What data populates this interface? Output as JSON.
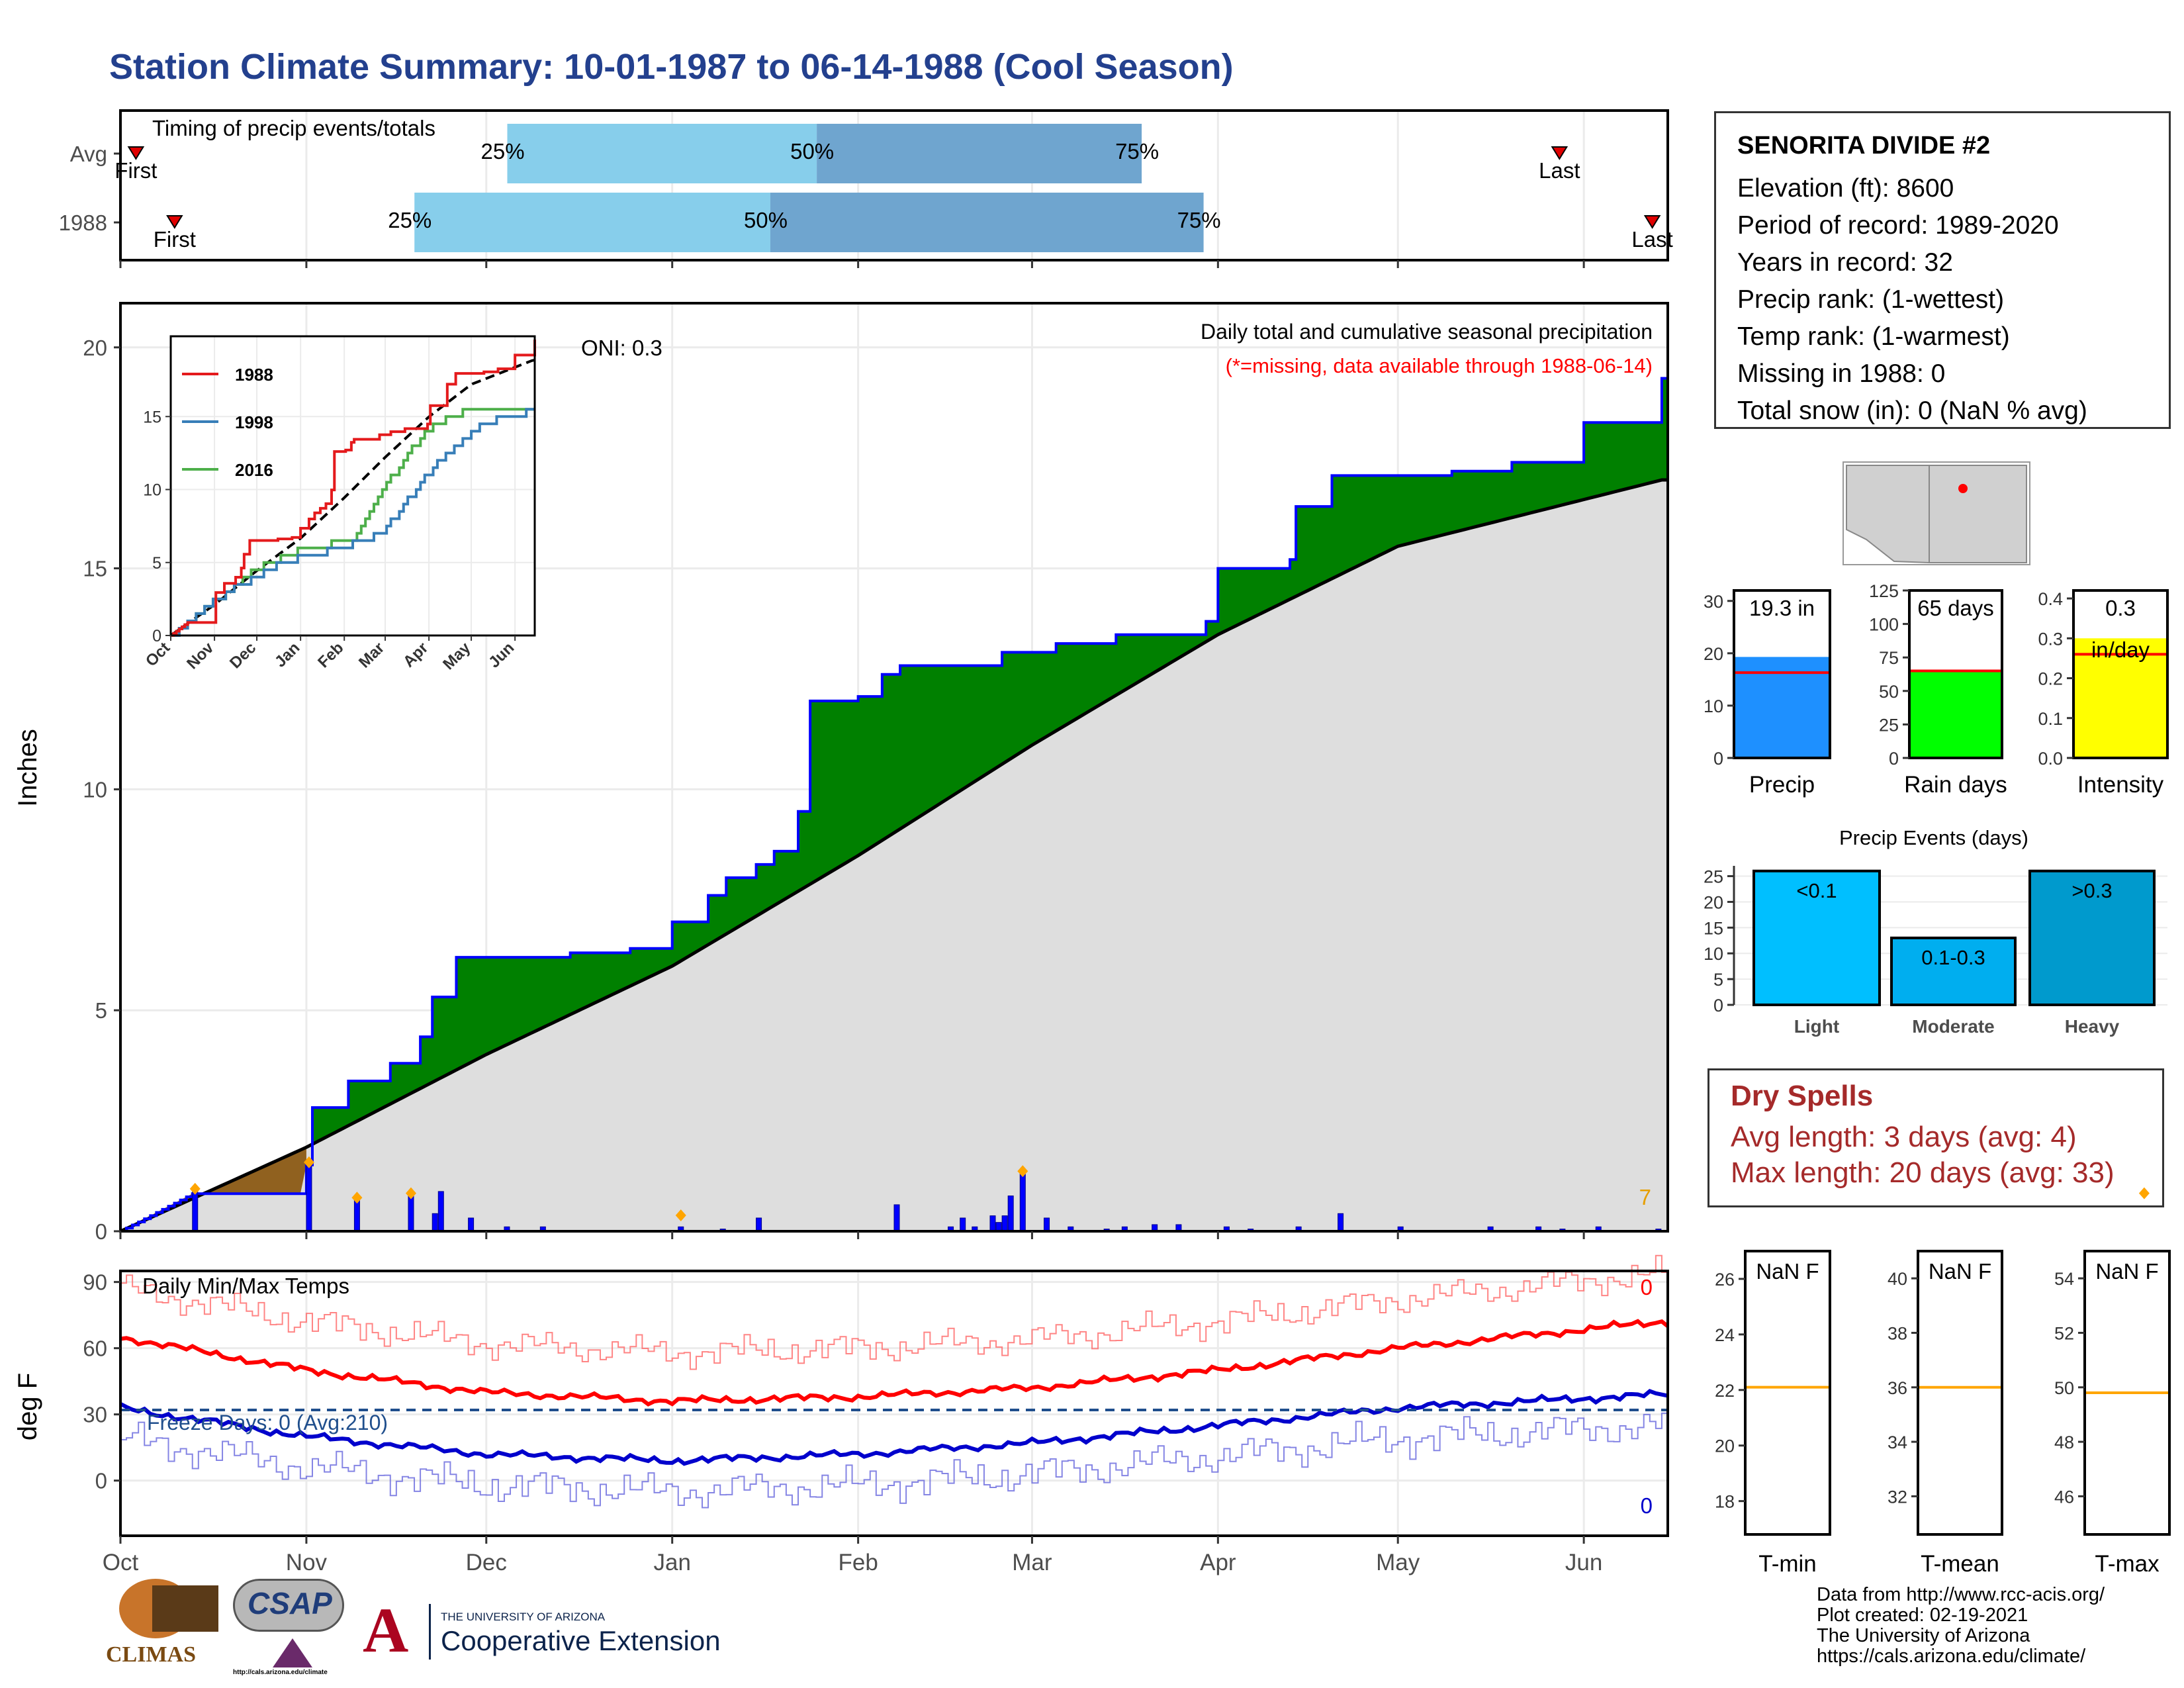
{
  "title": "Station Climate Summary: 10-01-1987 to 06-14-1988 (Cool Season)",
  "colors": {
    "title": "#23408e",
    "cum_fill": "#008000",
    "avg_fill": "#dedede",
    "deficit_fill": "#8b5a14",
    "daily_bars": "#0000ff",
    "max_temp": "#ff0000",
    "min_temp": "#0000cc",
    "quartile_light": "#87ceeb",
    "quartile_dark": "#6fa5cf",
    "dry_spells": "#a52a2a"
  },
  "months": [
    "Oct",
    "Nov",
    "Dec",
    "Jan",
    "Feb",
    "Mar",
    "Apr",
    "May",
    "Jun"
  ],
  "timing": {
    "label": "Timing of precip events/totals",
    "rows": [
      {
        "name": "Avg",
        "first_label": "First",
        "last_label": "Last",
        "q25": "25%",
        "q50": "50%",
        "q75": "75%",
        "first": 0.01,
        "last": 0.93,
        "p25": 0.25,
        "p50": 0.45,
        "p75": 0.66
      },
      {
        "name": "1988",
        "first_label": "First",
        "last_label": "Last",
        "q25": "25%",
        "q50": "50%",
        "q75": "75%",
        "first": 0.035,
        "last": 0.99,
        "p25": 0.19,
        "p50": 0.42,
        "p75": 0.7
      }
    ]
  },
  "precip_panel": {
    "ylabel": "Inches",
    "annotation": "Daily total and cumulative seasonal precipitation",
    "missing_note": "(*=missing, data available through 1988-06-14)",
    "oni": "ONI: 0.3",
    "corner_count": "7",
    "yticks": [
      "0",
      "5",
      "10",
      "15",
      "20"
    ]
  },
  "inset": {
    "legend": [
      "1988",
      "1998",
      "2016"
    ],
    "yticks": [
      "0",
      "5",
      "10",
      "15"
    ],
    "xticks": [
      "Oct",
      "Nov",
      "Dec",
      "Jan",
      "Feb",
      "Mar",
      "Apr",
      "May",
      "Jun"
    ]
  },
  "temp_panel": {
    "ylabel": "deg F",
    "label": "Daily Min/Max Temps",
    "freeze": "Freeze Days: 0 (Avg:210)",
    "max_count": "0",
    "min_count": "0",
    "yticks": [
      "0",
      "30",
      "60",
      "90"
    ]
  },
  "station": {
    "name": "SENORITA DIVIDE #2",
    "lines": [
      "Elevation (ft): 8600",
      "Period of record: 1989-2020",
      "Years in record: 32",
      "Precip rank:  (1-wettest)",
      "Temp rank:  (1-warmest)",
      "Missing in 1988: 0",
      "Total snow (in): 0 (NaN % avg)"
    ]
  },
  "mini_bars": [
    {
      "label": "Precip",
      "value_text": "19.3 in",
      "value": 19.3,
      "avg": 16.3,
      "ymax": 32,
      "yticks": [
        "0",
        "10",
        "20",
        "30"
      ],
      "color": "#1e90ff"
    },
    {
      "label": "Rain days",
      "value_text": "65 days",
      "value": 65,
      "avg": 65,
      "ymax": 125,
      "yticks": [
        "0",
        "25",
        "50",
        "75",
        "100",
        "125"
      ],
      "color": "#00ff00"
    },
    {
      "label": "Intensity",
      "value_text": "0.3",
      "value_text2": "in/day",
      "value": 0.3,
      "avg": 0.26,
      "ymax": 0.42,
      "yticks": [
        "0.0",
        "0.1",
        "0.2",
        "0.3",
        "0.4"
      ],
      "color": "#ffff00"
    }
  ],
  "events": {
    "title": "Precip Events (days)",
    "yticks": [
      "0",
      "5",
      "10",
      "15",
      "20",
      "25"
    ],
    "bars": [
      {
        "name": "Light",
        "label": "<0.1",
        "value": 26,
        "color": "#00bfff"
      },
      {
        "name": "Moderate",
        "label": "0.1-0.3",
        "value": 13,
        "color": "#00aeef"
      },
      {
        "name": "Heavy",
        "label": ">0.3",
        "value": 26,
        "color": "#009acd"
      }
    ]
  },
  "dry_spells": {
    "title": "Dry Spells",
    "avg": "Avg length: 3 days (avg: 4)",
    "max": "Max length: 20 days (avg: 33)"
  },
  "temp_boxes": [
    {
      "label": "T-min",
      "value_text": "NaN F",
      "yticks": [
        "18",
        "20",
        "22",
        "24",
        "26"
      ],
      "line": 22.1,
      "ymin": 16.8,
      "ymax": 27
    },
    {
      "label": "T-mean",
      "value_text": "NaN F",
      "yticks": [
        "32",
        "34",
        "36",
        "38",
        "40"
      ],
      "line": 36,
      "ymin": 30.6,
      "ymax": 41
    },
    {
      "label": "T-max",
      "value_text": "NaN F",
      "yticks": [
        "46",
        "48",
        "50",
        "52",
        "54"
      ],
      "line": 49.8,
      "ymin": 44.6,
      "ymax": 55
    }
  ],
  "credits": [
    "Data from http://www.rcc-acis.org/",
    "Plot created: 02-19-2021",
    "The University of Arizona",
    "https://cals.arizona.edu/climate/"
  ],
  "logos": {
    "climas": "CLIMAS",
    "csap": "CSAP",
    "csap_url": "http://cals.arizona.edu/climate",
    "ua_small": "THE UNIVERSITY OF ARIZONA",
    "ua_big": "Cooperative Extension"
  },
  "chart_data": [
    {
      "type": "area",
      "title": "Daily total and cumulative seasonal precipitation",
      "ylabel": "Inches",
      "ylim": [
        0,
        21
      ],
      "x_months": [
        "Oct",
        "Nov",
        "Dec",
        "Jan",
        "Feb",
        "Mar",
        "Apr",
        "May",
        "Jun"
      ],
      "series": [
        {
          "name": "1988",
          "points": [
            [
              "10-01",
              0
            ],
            [
              "10-13",
              0.85
            ],
            [
              "11-01",
              1.5
            ],
            [
              "11-02",
              2.8
            ],
            [
              "11-08",
              3.4
            ],
            [
              "11-15",
              3.8
            ],
            [
              "11-20",
              4.4
            ],
            [
              "11-22",
              5.3
            ],
            [
              "11-26",
              6.2
            ],
            [
              "12-15",
              6.3
            ],
            [
              "12-25",
              6.4
            ],
            [
              "01-01",
              7.0
            ],
            [
              "01-07",
              7.6
            ],
            [
              "01-10",
              8.0
            ],
            [
              "01-15",
              8.3
            ],
            [
              "01-18",
              8.6
            ],
            [
              "01-22",
              9.5
            ],
            [
              "01-24",
              12.0
            ],
            [
              "02-01",
              12.1
            ],
            [
              "02-05",
              12.6
            ],
            [
              "02-08",
              12.8
            ],
            [
              "02-25",
              13.1
            ],
            [
              "03-05",
              13.3
            ],
            [
              "03-15",
              13.5
            ],
            [
              "03-30",
              13.8
            ],
            [
              "04-01",
              15.0
            ],
            [
              "04-13",
              15.2
            ],
            [
              "04-14",
              16.4
            ],
            [
              "04-20",
              17.1
            ],
            [
              "05-10",
              17.2
            ],
            [
              "05-20",
              17.4
            ],
            [
              "06-01",
              18.3
            ],
            [
              "06-14",
              19.3
            ]
          ]
        },
        {
          "name": "average",
          "points": [
            [
              "10-01",
              0
            ],
            [
              "11-01",
              1.9
            ],
            [
              "12-01",
              4.0
            ],
            [
              "01-01",
              6.0
            ],
            [
              "02-01",
              8.5
            ],
            [
              "03-01",
              11.0
            ],
            [
              "04-01",
              13.5
            ],
            [
              "05-01",
              15.5
            ],
            [
              "06-14",
              17.0
            ]
          ]
        }
      ]
    },
    {
      "type": "line",
      "title": "Daily Min/Max Temps",
      "ylabel": "deg F",
      "ylim": [
        -25,
        95
      ],
      "series": [
        {
          "name": "max avg",
          "points": [
            [
              "10-01",
              65
            ],
            [
              "11-01",
              50
            ],
            [
              "12-01",
              40
            ],
            [
              "01-01",
              36
            ],
            [
              "02-01",
              38
            ],
            [
              "03-01",
              42
            ],
            [
              "04-01",
              50
            ],
            [
              "05-01",
              60
            ],
            [
              "06-14",
              72
            ]
          ]
        },
        {
          "name": "min avg",
          "points": [
            [
              "10-01",
              33
            ],
            [
              "11-01",
              20
            ],
            [
              "12-01",
              12
            ],
            [
              "01-01",
              9
            ],
            [
              "02-01",
              12
            ],
            [
              "03-01",
              17
            ],
            [
              "04-01",
              25
            ],
            [
              "05-01",
              33
            ],
            [
              "06-14",
              39
            ]
          ]
        }
      ]
    },
    {
      "type": "bar",
      "title": "Precip Events (days)",
      "categories": [
        "Light",
        "Moderate",
        "Heavy"
      ],
      "values": [
        26,
        13,
        26
      ]
    }
  ]
}
